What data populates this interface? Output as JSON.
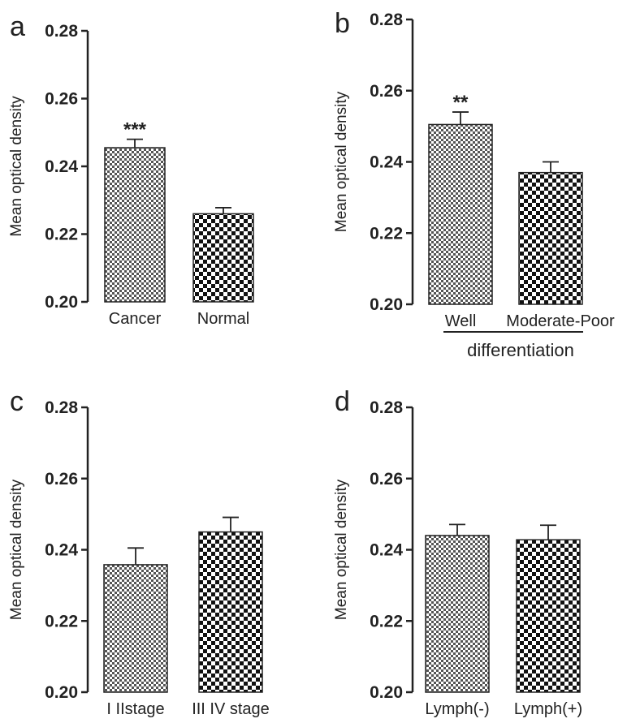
{
  "chart_data": [
    {
      "panel": "a",
      "type": "bar",
      "categories": [
        "Cancer",
        "Normal"
      ],
      "values": [
        0.2455,
        0.226
      ],
      "errors": [
        0.0025,
        0.0018
      ],
      "patterns": [
        "fine-check",
        "coarse-check"
      ],
      "annotations": [
        "***",
        ""
      ],
      "ylabel": "Mean optical density",
      "ylim": [
        0.2,
        0.28
      ],
      "yticks": [
        "0.20",
        "0.22",
        "0.24",
        "0.26",
        "0.28"
      ],
      "group_label": ""
    },
    {
      "panel": "b",
      "type": "bar",
      "categories": [
        "Well",
        "Moderate-Poor"
      ],
      "values": [
        0.2505,
        0.237
      ],
      "errors": [
        0.0035,
        0.003
      ],
      "patterns": [
        "fine-check",
        "coarse-check"
      ],
      "annotations": [
        "**",
        ""
      ],
      "ylabel": "Mean optical density",
      "ylim": [
        0.2,
        0.28
      ],
      "yticks": [
        "0.20",
        "0.22",
        "0.24",
        "0.26",
        "0.28"
      ],
      "group_label": "differentiation"
    },
    {
      "panel": "c",
      "type": "bar",
      "categories": [
        "I IIstage",
        "III IV stage"
      ],
      "values": [
        0.2358,
        0.245
      ],
      "errors": [
        0.0047,
        0.0041
      ],
      "patterns": [
        "fine-check",
        "coarse-check"
      ],
      "annotations": [
        "",
        ""
      ],
      "ylabel": "Mean optical density",
      "ylim": [
        0.2,
        0.28
      ],
      "yticks": [
        "0.20",
        "0.22",
        "0.24",
        "0.26",
        "0.28"
      ],
      "group_label": ""
    },
    {
      "panel": "d",
      "type": "bar",
      "categories": [
        "Lymph(-)",
        "Lymph(+)"
      ],
      "values": [
        0.244,
        0.2428
      ],
      "errors": [
        0.0031,
        0.0041
      ],
      "patterns": [
        "fine-check",
        "coarse-check"
      ],
      "annotations": [
        "",
        ""
      ],
      "ylabel": "Mean optical density",
      "ylim": [
        0.2,
        0.28
      ],
      "yticks": [
        "0.20",
        "0.22",
        "0.24",
        "0.26",
        "0.28"
      ],
      "group_label": ""
    }
  ],
  "colors": {
    "ink": "#222222",
    "bar_fill_light": "#ffffff"
  }
}
